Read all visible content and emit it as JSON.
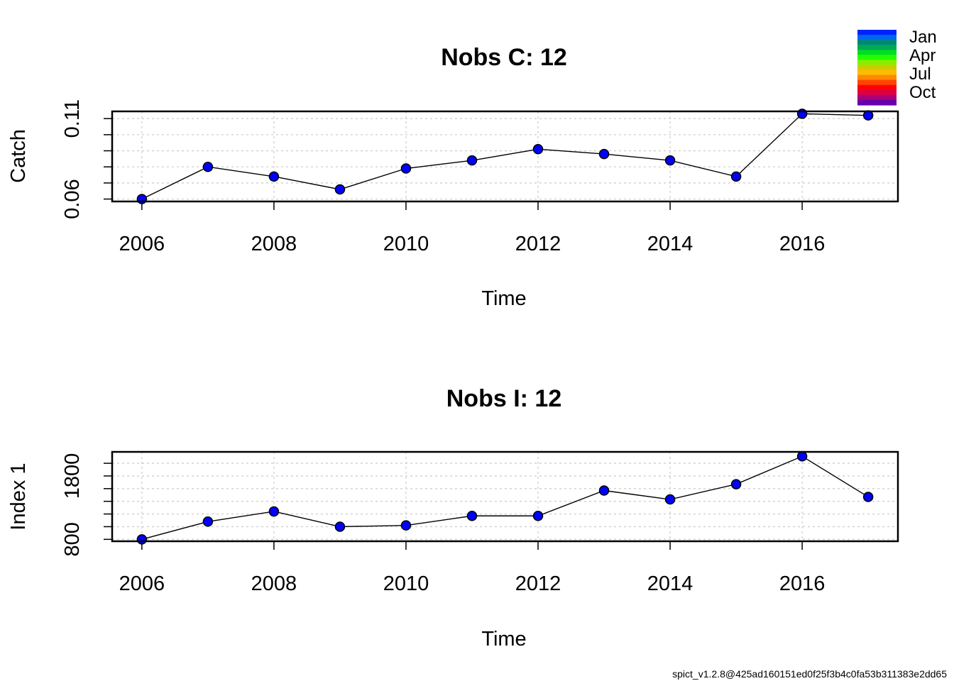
{
  "chart_data": [
    {
      "type": "line",
      "title": "Nobs C: 12",
      "xlabel": "Time",
      "ylabel": "Catch",
      "x": [
        2006,
        2007,
        2008,
        2009,
        2010,
        2011,
        2012,
        2013,
        2014,
        2015,
        2016,
        2017
      ],
      "y": [
        0.06,
        0.08,
        0.074,
        0.066,
        0.079,
        0.084,
        0.091,
        0.088,
        0.084,
        0.074,
        0.113,
        0.112
      ],
      "xlim": [
        2005.55,
        2017.45
      ],
      "ylim": [
        0.0585,
        0.1145
      ],
      "xticks": [
        2006,
        2008,
        2010,
        2012,
        2014,
        2016
      ],
      "xtick_labels": [
        "2006",
        "2008",
        "2010",
        "2012",
        "2014",
        "2016"
      ],
      "ytick_labels_at": [
        0.06,
        0.11
      ],
      "ytick_labels": [
        "0.06",
        "0.11"
      ],
      "yticks": [
        0.06,
        0.07,
        0.08,
        0.09,
        0.1,
        0.11
      ],
      "grid": true,
      "point_color": "#0000ff",
      "line_color": "#000000"
    },
    {
      "type": "line",
      "title": "Nobs I: 12",
      "xlabel": "Time",
      "ylabel": "Index 1",
      "x": [
        2006,
        2007,
        2008,
        2009,
        2010,
        2011,
        2012,
        2013,
        2014,
        2015,
        2016,
        2017
      ],
      "y": [
        800,
        1080,
        1240,
        1000,
        1020,
        1170,
        1170,
        1570,
        1430,
        1670,
        2110,
        1470
      ],
      "xlim": [
        2005.55,
        2017.45
      ],
      "ylim": [
        770,
        2180
      ],
      "xticks": [
        2006,
        2008,
        2010,
        2012,
        2014,
        2016
      ],
      "xtick_labels": [
        "2006",
        "2008",
        "2010",
        "2012",
        "2014",
        "2016"
      ],
      "ytick_labels_at": [
        800,
        1800
      ],
      "ytick_labels": [
        "800",
        "1800"
      ],
      "yticks": [
        800,
        1000,
        1200,
        1400,
        1600,
        1800,
        2000
      ],
      "grid": true,
      "point_color": "#0000ff",
      "line_color": "#000000"
    }
  ],
  "legend": {
    "placement": "top-right",
    "labels": [
      "Jan",
      "Apr",
      "Jul",
      "Oct"
    ],
    "colors": [
      "#0022ff",
      "#0066ee",
      "#008877",
      "#00aa55",
      "#00dd22",
      "#22ff00",
      "#88ee00",
      "#cccc00",
      "#ffbb00",
      "#ff8800",
      "#ff4400",
      "#ff0000",
      "#dd0044",
      "#aa0077",
      "#6600aa"
    ]
  },
  "footer": "spict_v1.2.8@425ad160151ed0f25f3b4c0fa53b311383e2dd65"
}
